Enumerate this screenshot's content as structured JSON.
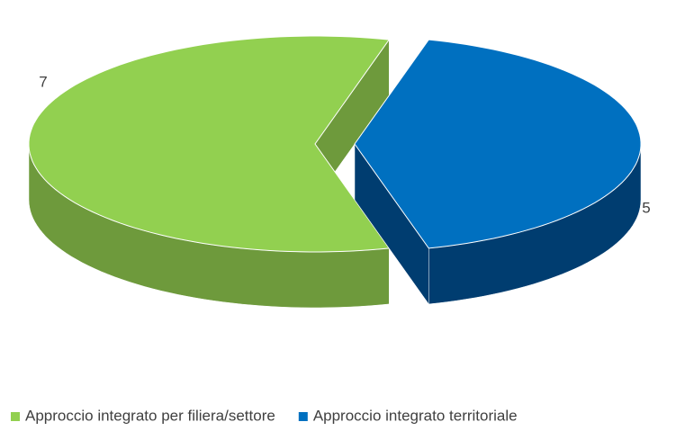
{
  "chart_data": {
    "type": "pie",
    "categories": [
      "Approccio integrato per filiera/settore",
      "Approccio integrato territoriale"
    ],
    "values": [
      7,
      5
    ],
    "colors": [
      "#92d050",
      "#0070c0"
    ],
    "side_colors": [
      "#6e9a3c",
      "#003d70"
    ],
    "legend": "bottom"
  }
}
